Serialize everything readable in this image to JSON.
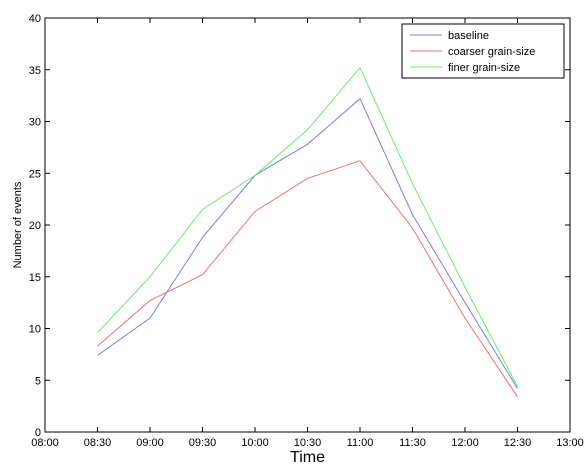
{
  "chart_data": {
    "type": "line",
    "title": "",
    "xlabel": "Time",
    "ylabel": "Number of events",
    "x": [
      "08:00",
      "08:30",
      "09:00",
      "09:30",
      "10:00",
      "10:30",
      "11:00",
      "11:30",
      "12:00",
      "12:30",
      "13:00"
    ],
    "xticks": [
      "08:00",
      "08:30",
      "09:00",
      "09:30",
      "10:00",
      "10:30",
      "11:00",
      "11:30",
      "12:00",
      "12:30",
      "13:00"
    ],
    "yticks": [
      0,
      5,
      10,
      15,
      20,
      25,
      30,
      35,
      40
    ],
    "ylim": [
      0,
      40
    ],
    "grid": false,
    "legend_position": "top-right",
    "series": [
      {
        "name": "baseline",
        "color": "#7b7bf0",
        "points": [
          [
            "08:30",
            7.4
          ],
          [
            "09:00",
            11.0
          ],
          [
            "09:30",
            18.8
          ],
          [
            "10:00",
            24.8
          ],
          [
            "10:30",
            27.8
          ],
          [
            "11:00",
            32.2
          ],
          [
            "11:30",
            21.0
          ],
          [
            "12:00",
            12.5
          ],
          [
            "12:30",
            4.2
          ]
        ]
      },
      {
        "name": "coarser grain-size",
        "color": "#f07070",
        "points": [
          [
            "08:30",
            8.3
          ],
          [
            "09:00",
            12.7
          ],
          [
            "09:30",
            15.2
          ],
          [
            "10:00",
            21.3
          ],
          [
            "10:30",
            24.5
          ],
          [
            "11:00",
            26.2
          ],
          [
            "11:30",
            19.7
          ],
          [
            "12:00",
            11.0
          ],
          [
            "12:30",
            3.4
          ]
        ]
      },
      {
        "name": "finer grain-size",
        "color": "#63f063",
        "points": [
          [
            "08:30",
            9.6
          ],
          [
            "09:00",
            15.0
          ],
          [
            "09:30",
            21.5
          ],
          [
            "10:00",
            24.8
          ],
          [
            "10:30",
            29.2
          ],
          [
            "11:00",
            35.2
          ],
          [
            "11:30",
            24.0
          ],
          [
            "12:00",
            14.0
          ],
          [
            "12:30",
            4.4
          ]
        ]
      }
    ]
  }
}
